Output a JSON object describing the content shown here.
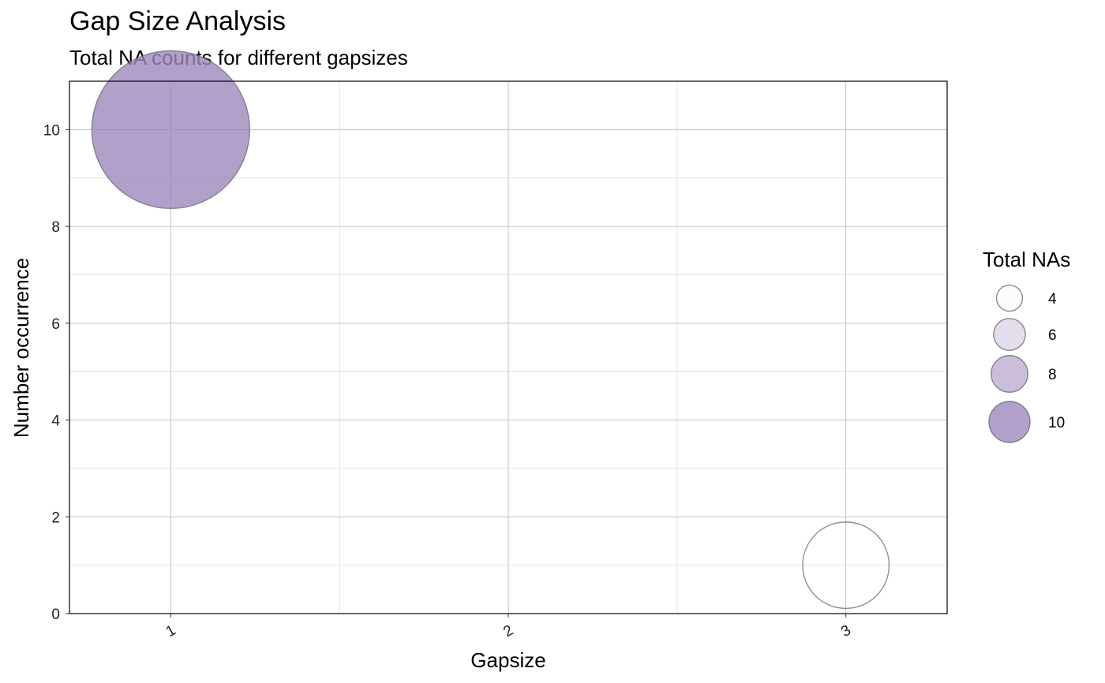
{
  "chart_data": {
    "type": "scatter",
    "title": "Gap Size Analysis",
    "subtitle": "Total NA counts for different gapsizes",
    "xlabel": "Gapsize",
    "ylabel": "Number occurrence",
    "x_categories": [
      "1",
      "2",
      "3"
    ],
    "xlim": [
      0.7,
      3.3
    ],
    "ylim": [
      0,
      11
    ],
    "y_ticks": [
      0,
      2,
      4,
      6,
      8,
      10
    ],
    "grid": true,
    "points": [
      {
        "x": "1",
        "y": 10,
        "size": 10
      },
      {
        "x": "3",
        "y": 1,
        "size": 3
      }
    ],
    "legend": {
      "title": "Total NAs",
      "placement": "right",
      "entries": [
        {
          "label": "4",
          "value": 4
        },
        {
          "label": "6",
          "value": 6
        },
        {
          "label": "8",
          "value": 8
        },
        {
          "label": "10",
          "value": 10
        }
      ]
    },
    "colors": {
      "low": "#fcfbfd",
      "high": "#9e88bc",
      "outline": "#6e6a78"
    }
  }
}
